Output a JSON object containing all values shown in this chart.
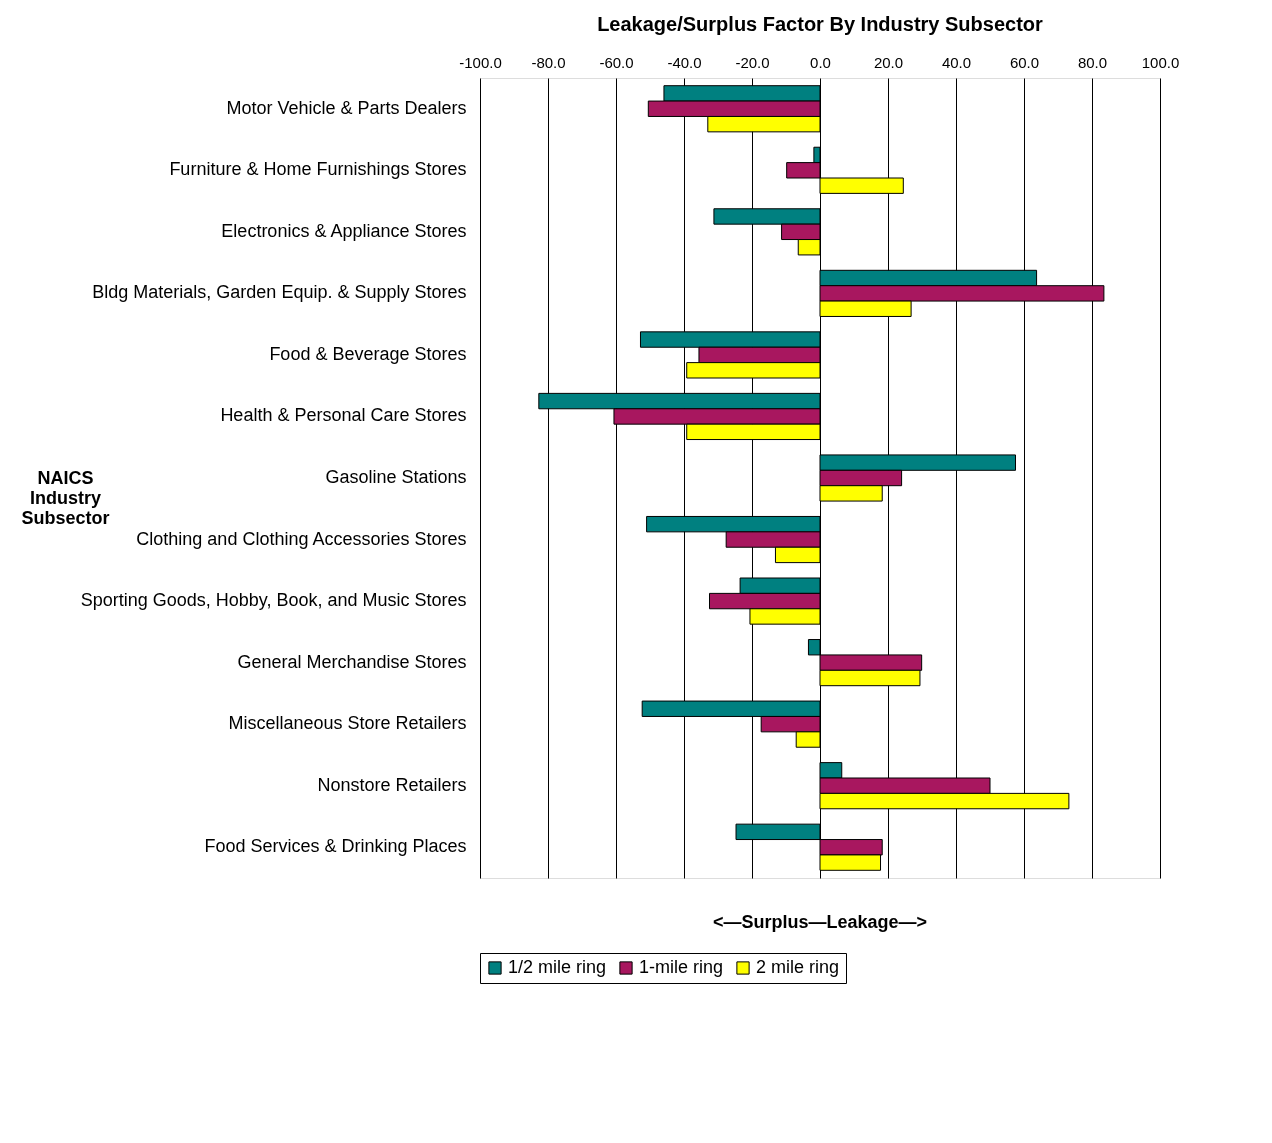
{
  "chart_data": {
    "type": "bar",
    "orientation": "horizontal",
    "title": "Leakage/Surplus Factor By Industry Subsector",
    "xlabel": "<—Surplus—Leakage—>",
    "ylabel": "NAICS Industry Subsector",
    "categories": [
      "Motor Vehicle & Parts Dealers",
      "Furniture & Home Furnishings Stores",
      "Electronics & Appliance Stores",
      "Bldg Materials, Garden Equip. & Supply Stores",
      "Food & Beverage Stores",
      "Health & Personal Care Stores",
      "Gasoline Stations",
      "Clothing and Clothing Accessories Stores",
      "Sporting Goods, Hobby, Book, and Music Stores",
      "General Merchandise Stores",
      "Miscellaneous Store Retailers",
      "Nonstore Retailers",
      "Food Services & Drinking Places"
    ],
    "series": [
      {
        "name": "1/2 mile ring",
        "color": "#008080",
        "values": [
          -45.9,
          -1.8,
          -31.2,
          63.7,
          -52.8,
          -82.7,
          57.5,
          -51.0,
          -23.5,
          -3.4,
          -52.3,
          6.4,
          -24.7
        ]
      },
      {
        "name": "1-mile ring",
        "color": "#a8175f",
        "values": [
          -50.5,
          -9.8,
          -11.3,
          83.5,
          -35.6,
          -60.6,
          24.0,
          -27.6,
          -32.5,
          29.9,
          -17.3,
          50.0,
          18.3
        ]
      },
      {
        "name": "2 mile ring",
        "color": "#ffff00",
        "values": [
          -33.0,
          24.5,
          -6.4,
          26.8,
          -39.2,
          -39.2,
          18.3,
          -13.1,
          -20.6,
          29.4,
          -7.0,
          73.2,
          17.8
        ]
      }
    ],
    "xlim": [
      -100,
      100
    ],
    "xticks": [
      {
        "value": -100,
        "label": "-100.0"
      },
      {
        "value": -80,
        "label": "-80.0"
      },
      {
        "value": -60,
        "label": "-60.0"
      },
      {
        "value": -40,
        "label": "-40.0"
      },
      {
        "value": -20,
        "label": "-20.0"
      },
      {
        "value": 0,
        "label": "0.0"
      },
      {
        "value": 20,
        "label": "20.0"
      },
      {
        "value": 40,
        "label": "40.0"
      },
      {
        "value": 60,
        "label": "60.0"
      },
      {
        "value": 80,
        "label": "80.0"
      },
      {
        "value": 100,
        "label": "100.0"
      }
    ],
    "grid": "x",
    "legend": "bottom"
  }
}
